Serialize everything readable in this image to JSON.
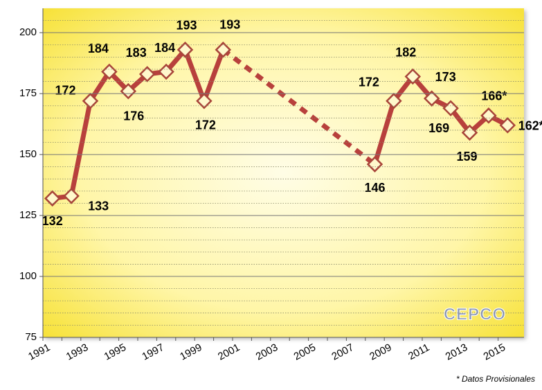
{
  "chart_data": {
    "type": "line",
    "categories": [
      "1991",
      null,
      "1993",
      null,
      "1995",
      null,
      "1997",
      null,
      "1999",
      null,
      "2001",
      null,
      "2003",
      null,
      "2005",
      null,
      "2007",
      null,
      "2009",
      null,
      "2011",
      null,
      "2013",
      null,
      "2015"
    ],
    "series": [
      {
        "color": "#b8403c",
        "values": [
          132,
          133,
          172,
          184,
          176,
          183,
          184,
          193,
          172,
          193,
          null,
          null,
          null,
          null,
          null,
          null,
          null,
          146,
          172,
          182,
          173,
          169,
          159,
          166,
          162
        ],
        "value_labels": [
          "132",
          "133",
          "172",
          "184",
          "176",
          "183",
          "184",
          "193",
          "172",
          "193",
          null,
          null,
          null,
          null,
          null,
          null,
          null,
          "146",
          "172",
          "182",
          "173",
          "169",
          "159",
          "166*",
          "162*"
        ]
      }
    ],
    "ylim": [
      75,
      210
    ],
    "yticks": [
      75,
      100,
      125,
      150,
      175,
      200
    ],
    "minor_yticks": [
      80,
      85,
      90,
      95,
      105,
      110,
      115,
      120,
      130,
      135,
      140,
      145,
      155,
      160,
      165,
      170,
      180,
      185,
      190,
      195,
      205
    ],
    "grid": true,
    "annotation": "* Datos Provisionales",
    "logo_text": "CEPCO"
  }
}
